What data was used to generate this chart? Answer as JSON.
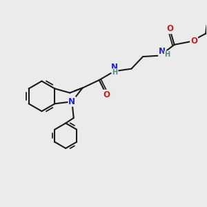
{
  "background_color": "#ebebeb",
  "bond_color": "#1a1a1a",
  "bond_width": 1.5,
  "atom_colors": {
    "N": "#2020cc",
    "O": "#cc2020",
    "H": "#4a8a8a"
  },
  "font_size": 8.5,
  "font_size_h": 7.0
}
